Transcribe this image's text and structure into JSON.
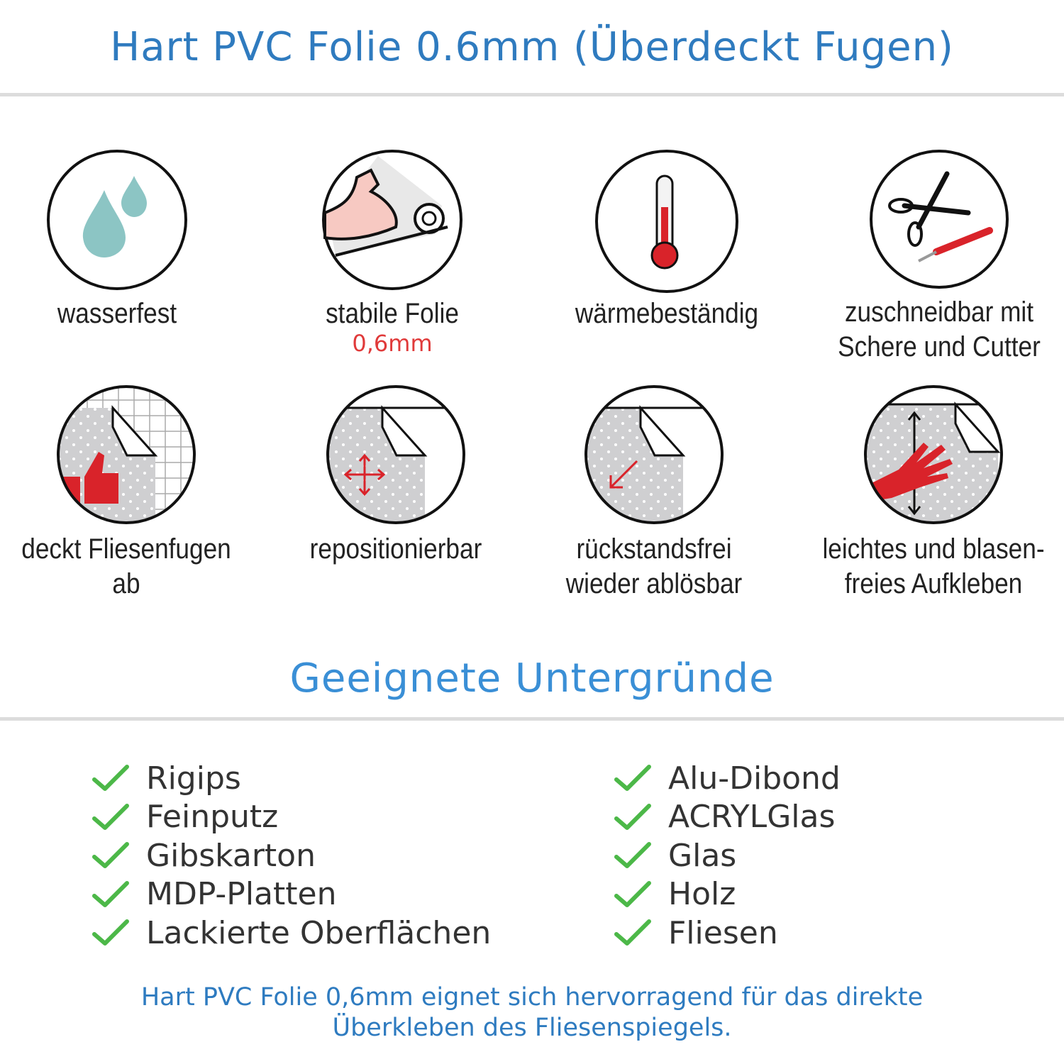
{
  "header": {
    "title": "Hart PVC Folie 0.6mm (Überdeckt Fugen)"
  },
  "features": [
    {
      "label": "wasserfest",
      "icon": "water-drops-icon"
    },
    {
      "label": "stabile Folie",
      "sub": "0,6mm",
      "icon": "strong-arm-icon"
    },
    {
      "label": "wärmebeständig",
      "icon": "thermometer-icon"
    },
    {
      "label": "zuschneidbar mit",
      "label2": "Schere und Cutter",
      "icon": "scissors-cutter-icon"
    },
    {
      "label": "deckt Fliesenfugen ab",
      "icon": "thumbs-up-tiles-icon"
    },
    {
      "label": "repositionierbar",
      "icon": "move-arrows-icon"
    },
    {
      "label": "rückstandsfrei",
      "label2": "wieder ablösbar",
      "icon": "peel-off-icon"
    },
    {
      "label": "leichtes und blasen-",
      "label2": "freies Aufkleben",
      "icon": "hand-smooth-icon"
    }
  ],
  "surfaces": {
    "title": "Geeignete Untergründe",
    "left": [
      "Rigips",
      "Feinputz",
      "Gibskarton",
      "MDP-Platten",
      "Lackierte Oberflächen"
    ],
    "right": [
      "Alu-Dibond",
      "ACRYLGlas",
      "Glas",
      "Holz",
      "Fliesen"
    ]
  },
  "footer": {
    "line1": "Hart PVC Folie 0,6mm eignet sich hervorragend für das direkte",
    "line2": "Überkleben des Fliesenspiegels."
  },
  "colors": {
    "title": "#2f7bbf",
    "accent_red": "#e03a3a",
    "check": "#4cb848",
    "drop": "#8cc5c4"
  }
}
